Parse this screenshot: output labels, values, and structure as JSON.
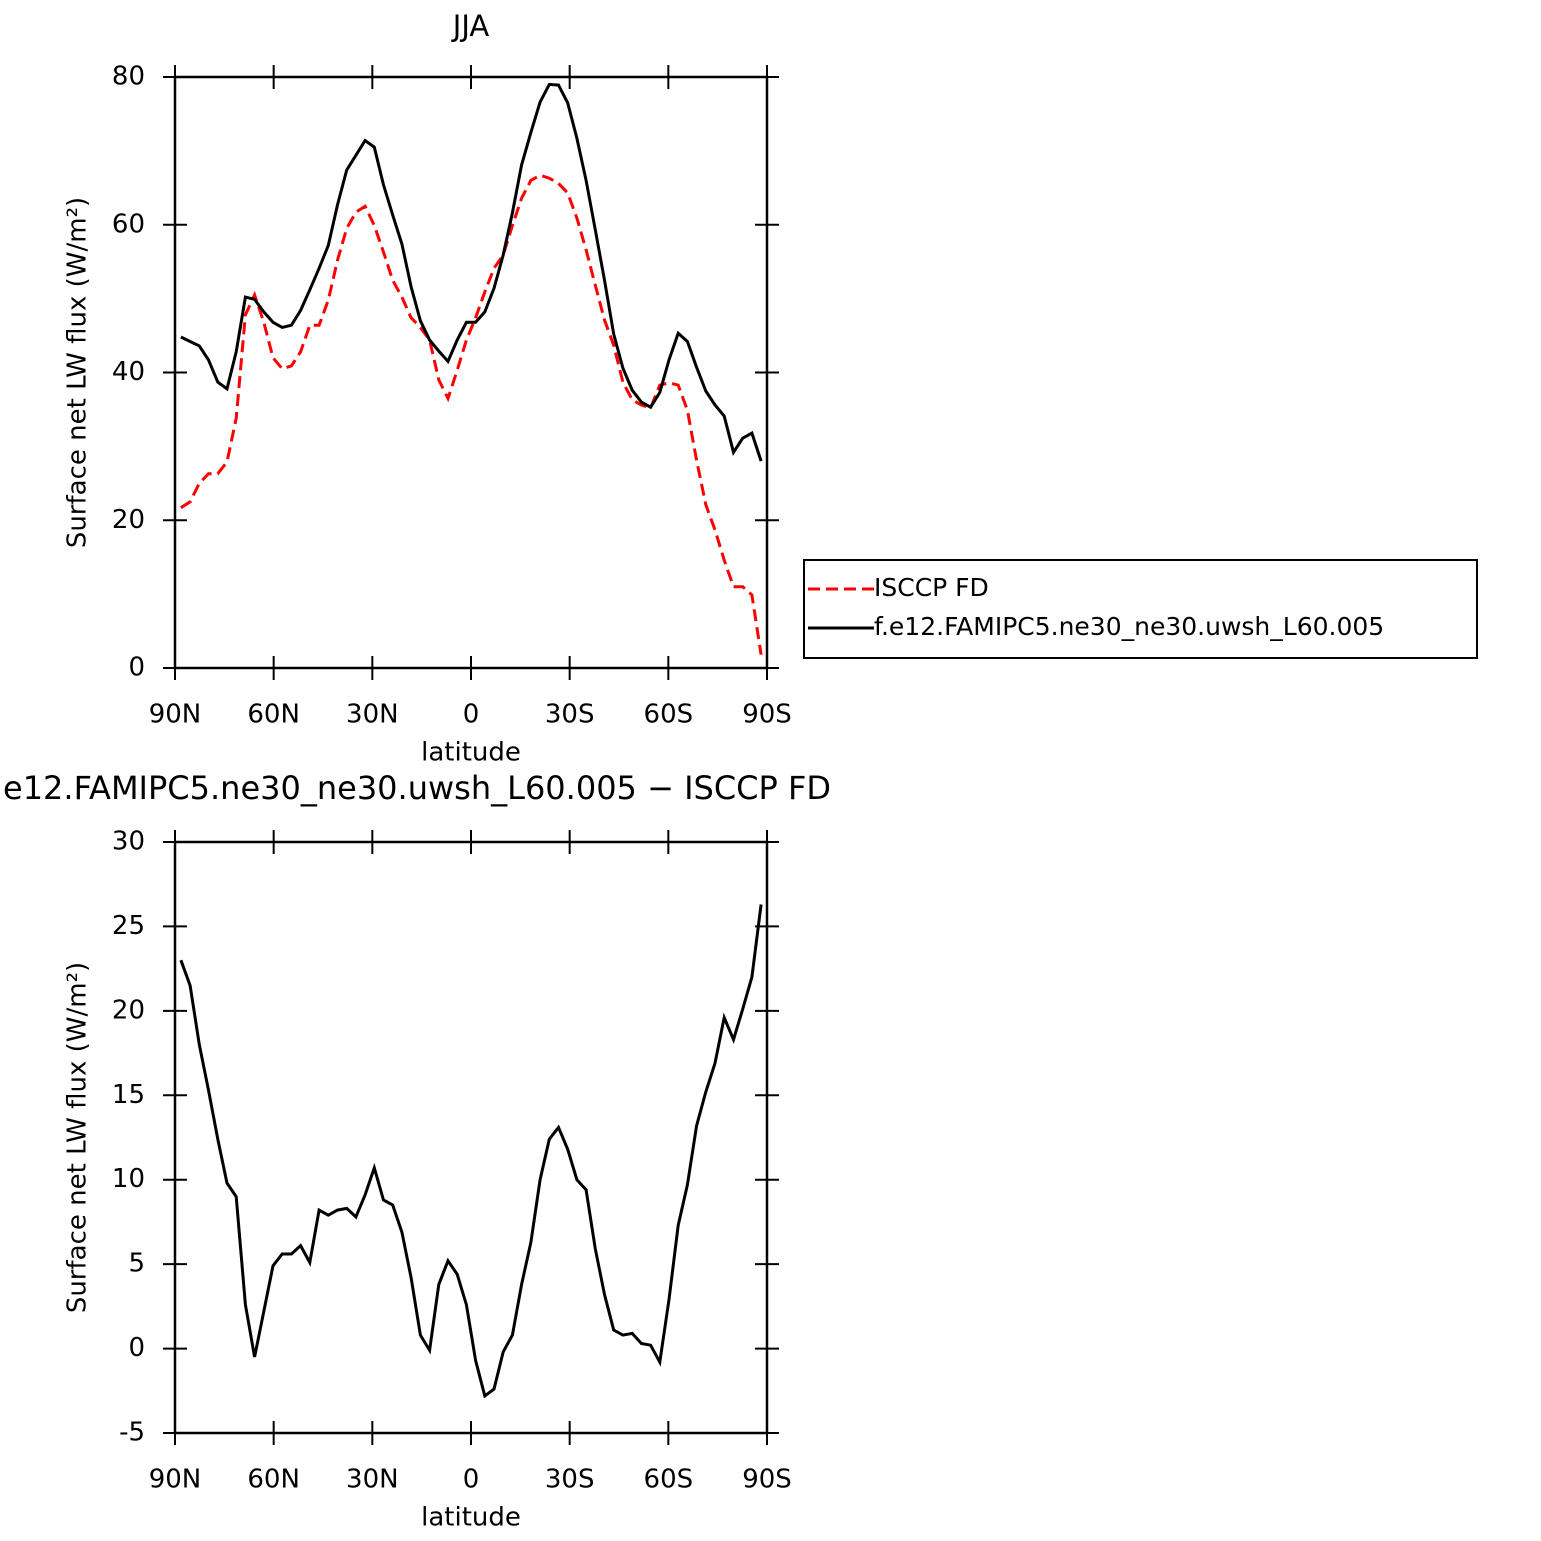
{
  "chart_data": [
    {
      "type": "line",
      "title": "JJA",
      "xlabel": "latitude",
      "ylabel": "Surface net LW flux (W/m²)",
      "x": [
        88.2,
        85.4,
        82.6,
        79.8,
        77,
        74.2,
        71.4,
        68.6,
        65.8,
        63,
        60.2,
        57.4,
        54.6,
        51.8,
        49,
        46.2,
        43.4,
        40.6,
        37.8,
        35,
        32.2,
        29.4,
        26.6,
        23.8,
        21,
        18.2,
        15.4,
        12.6,
        9.8,
        7,
        4.2,
        1.4,
        -1.4,
        -4.2,
        -7,
        -9.8,
        -12.6,
        -15.4,
        -18.2,
        -21,
        -23.8,
        -26.6,
        -29.4,
        -32.2,
        -35,
        -37.8,
        -40.6,
        -43.4,
        -46.2,
        -49,
        -51.8,
        -54.6,
        -57.4,
        -60.2,
        -63,
        -65.8,
        -68.6,
        -71.4,
        -74.2,
        -77,
        -79.8,
        -82.6,
        -85.4,
        -88.2
      ],
      "series": [
        {
          "name": "ISCCP FD",
          "color": "#ff0000",
          "dashed": true,
          "values": [
            21.7,
            22.5,
            25,
            26.3,
            26.3,
            27.9,
            33.8,
            47.8,
            50.5,
            46.8,
            42,
            40.5,
            40.9,
            42.8,
            46.4,
            46.4,
            49.8,
            55.2,
            59.5,
            61.7,
            62.5,
            59.9,
            56.3,
            52.5,
            50.2,
            47.4,
            46.1,
            44.4,
            39,
            36.5,
            40.3,
            44.4,
            47.4,
            50.9,
            54.1,
            55.9,
            59.9,
            63.6,
            66,
            66.7,
            66.3,
            65.6,
            64.3,
            60.9,
            56.6,
            51.8,
            47.1,
            43.7,
            38.7,
            36.3,
            35.6,
            35.2,
            38.3,
            38.6,
            38.3,
            34.9,
            28.1,
            22.1,
            18.7,
            14.6,
            11,
            11,
            9.9,
            1.8
          ]
        },
        {
          "name": "f.e12.FAMIPC5.ne30_ne30.uwsh_L60.005",
          "color": "#000000",
          "dashed": false,
          "values": [
            44.8,
            44.2,
            43.6,
            41.7,
            38.7,
            37.8,
            42.8,
            50.2,
            49.9,
            48.2,
            46.8,
            46.1,
            46.4,
            48.4,
            51.2,
            54.1,
            57.2,
            62.7,
            67.4,
            69.4,
            71.4,
            70.5,
            65.4,
            61.3,
            57.4,
            51.6,
            47,
            44.4,
            42.9,
            41.5,
            44.4,
            46.8,
            46.8,
            48.2,
            51.4,
            55.9,
            61.6,
            68.1,
            72.5,
            76.6,
            79,
            78.9,
            76.5,
            71.7,
            66,
            59.3,
            52.5,
            45.2,
            40.6,
            37.6,
            36,
            35.3,
            37.3,
            41.7,
            45.3,
            44.2,
            40.7,
            37.5,
            35.6,
            34.1,
            29.2,
            31.1,
            31.8,
            28
          ]
        }
      ],
      "xlim": [
        90,
        -90
      ],
      "xticks": [
        {
          "value": 90,
          "label": "90N"
        },
        {
          "value": 60,
          "label": "60N"
        },
        {
          "value": 30,
          "label": "30N"
        },
        0,
        {
          "value": -30,
          "label": "30S"
        },
        {
          "value": -60,
          "label": "60S"
        },
        {
          "value": -90,
          "label": "90S"
        }
      ],
      "ylim": [
        0,
        80
      ],
      "yticks": [
        0,
        20,
        40,
        60,
        80
      ],
      "legend": "right"
    },
    {
      "type": "line",
      "title": "e12.FAMIPC5.ne30_ne30.uwsh_L60.005 − ISCCP FD",
      "xlabel": "latitude",
      "ylabel": "Surface net LW flux (W/m²)",
      "x": [
        88.2,
        85.4,
        82.6,
        79.8,
        77,
        74.2,
        71.4,
        68.6,
        65.8,
        63,
        60.2,
        57.4,
        54.6,
        51.8,
        49,
        46.2,
        43.4,
        40.6,
        37.8,
        35,
        32.2,
        29.4,
        26.6,
        23.8,
        21,
        18.2,
        15.4,
        12.6,
        9.8,
        7,
        4.2,
        1.4,
        -1.4,
        -4.2,
        -7,
        -9.8,
        -12.6,
        -15.4,
        -18.2,
        -21,
        -23.8,
        -26.6,
        -29.4,
        -32.2,
        -35,
        -37.8,
        -40.6,
        -43.4,
        -46.2,
        -49,
        -51.8,
        -54.6,
        -57.4,
        -60.2,
        -63,
        -65.8,
        -68.6,
        -71.4,
        -74.2,
        -77,
        -79.8,
        -82.6,
        -85.4,
        -88.2
      ],
      "values": [
        23,
        21.5,
        18,
        15.3,
        12.4,
        9.8,
        9,
        2.6,
        -0.5,
        2.2,
        4.9,
        5.6,
        5.6,
        6.1,
        5.1,
        8.2,
        7.9,
        8.2,
        8.3,
        7.8,
        9.1,
        10.7,
        8.8,
        8.5,
        6.9,
        4.2,
        0.8,
        -0.1,
        3.8,
        5.2,
        4.4,
        2.6,
        -0.7,
        -2.8,
        -2.4,
        -0.2,
        0.8,
        3.8,
        6.3,
        10,
        12.4,
        13.1,
        11.8,
        10,
        9.4,
        5.9,
        3.2,
        1.1,
        0.8,
        0.9,
        0.3,
        0.2,
        -0.8,
        2.9,
        7.3,
        9.7,
        13.2,
        15.2,
        16.9,
        19.6,
        18.3,
        20.1,
        22,
        26.3
      ],
      "color": "#000000",
      "xlim": [
        90,
        -90
      ],
      "xticks": [
        {
          "value": 90,
          "label": "90N"
        },
        {
          "value": 60,
          "label": "60N"
        },
        {
          "value": 30,
          "label": "30N"
        },
        0,
        {
          "value": -30,
          "label": "30S"
        },
        {
          "value": -60,
          "label": "60S"
        },
        {
          "value": -90,
          "label": "90S"
        }
      ],
      "ylim": [
        -5,
        30
      ],
      "yticks": [
        -5,
        0,
        5,
        10,
        15,
        20,
        25,
        30
      ]
    }
  ]
}
